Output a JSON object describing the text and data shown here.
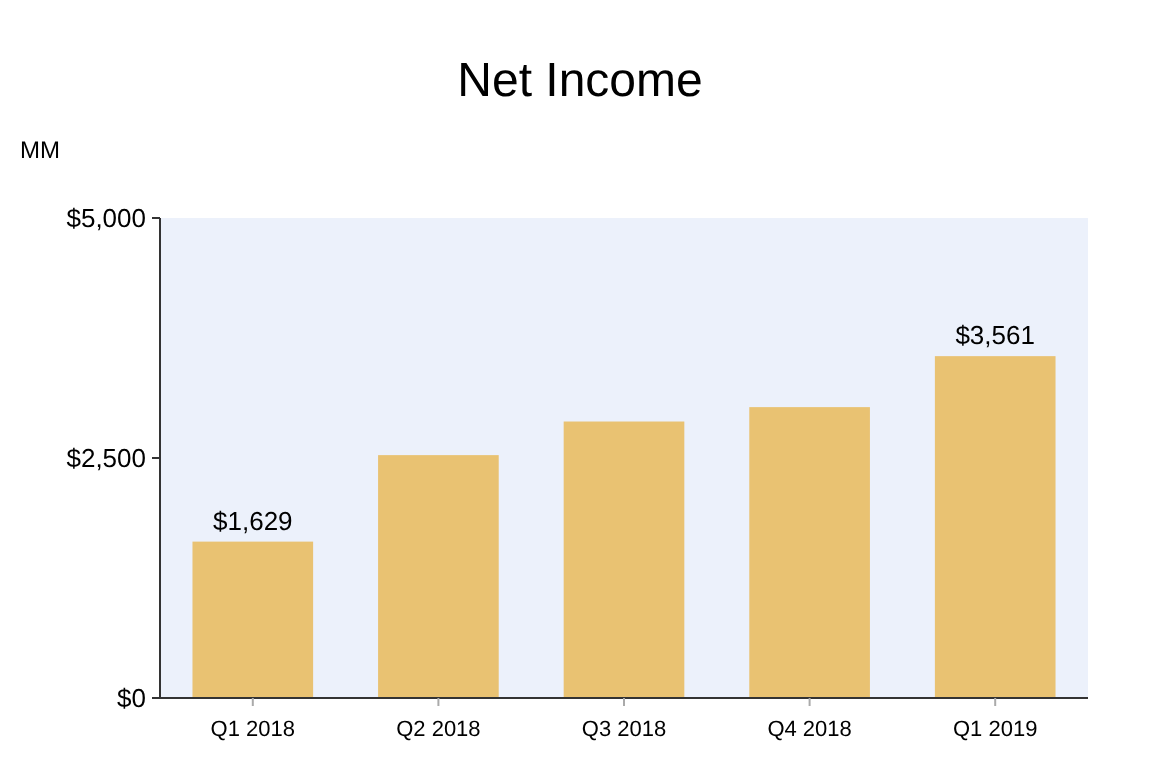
{
  "chart_data": {
    "type": "bar",
    "title": "Net Income",
    "ylabel": "MM",
    "categories": [
      "Q1 2018",
      "Q2 2018",
      "Q3 2018",
      "Q4 2018",
      "Q1 2019"
    ],
    "values": [
      1629,
      2530,
      2880,
      3030,
      3561
    ],
    "value_labels": [
      "$1,629",
      null,
      null,
      null,
      "$3,561"
    ],
    "color": "#e9c272",
    "ylim": [
      0,
      5000
    ],
    "yticks": [
      {
        "value": 0,
        "label": "$0"
      },
      {
        "value": 2500,
        "label": "$2,500"
      },
      {
        "value": 5000,
        "label": "$5,000"
      }
    ],
    "grid": false
  }
}
